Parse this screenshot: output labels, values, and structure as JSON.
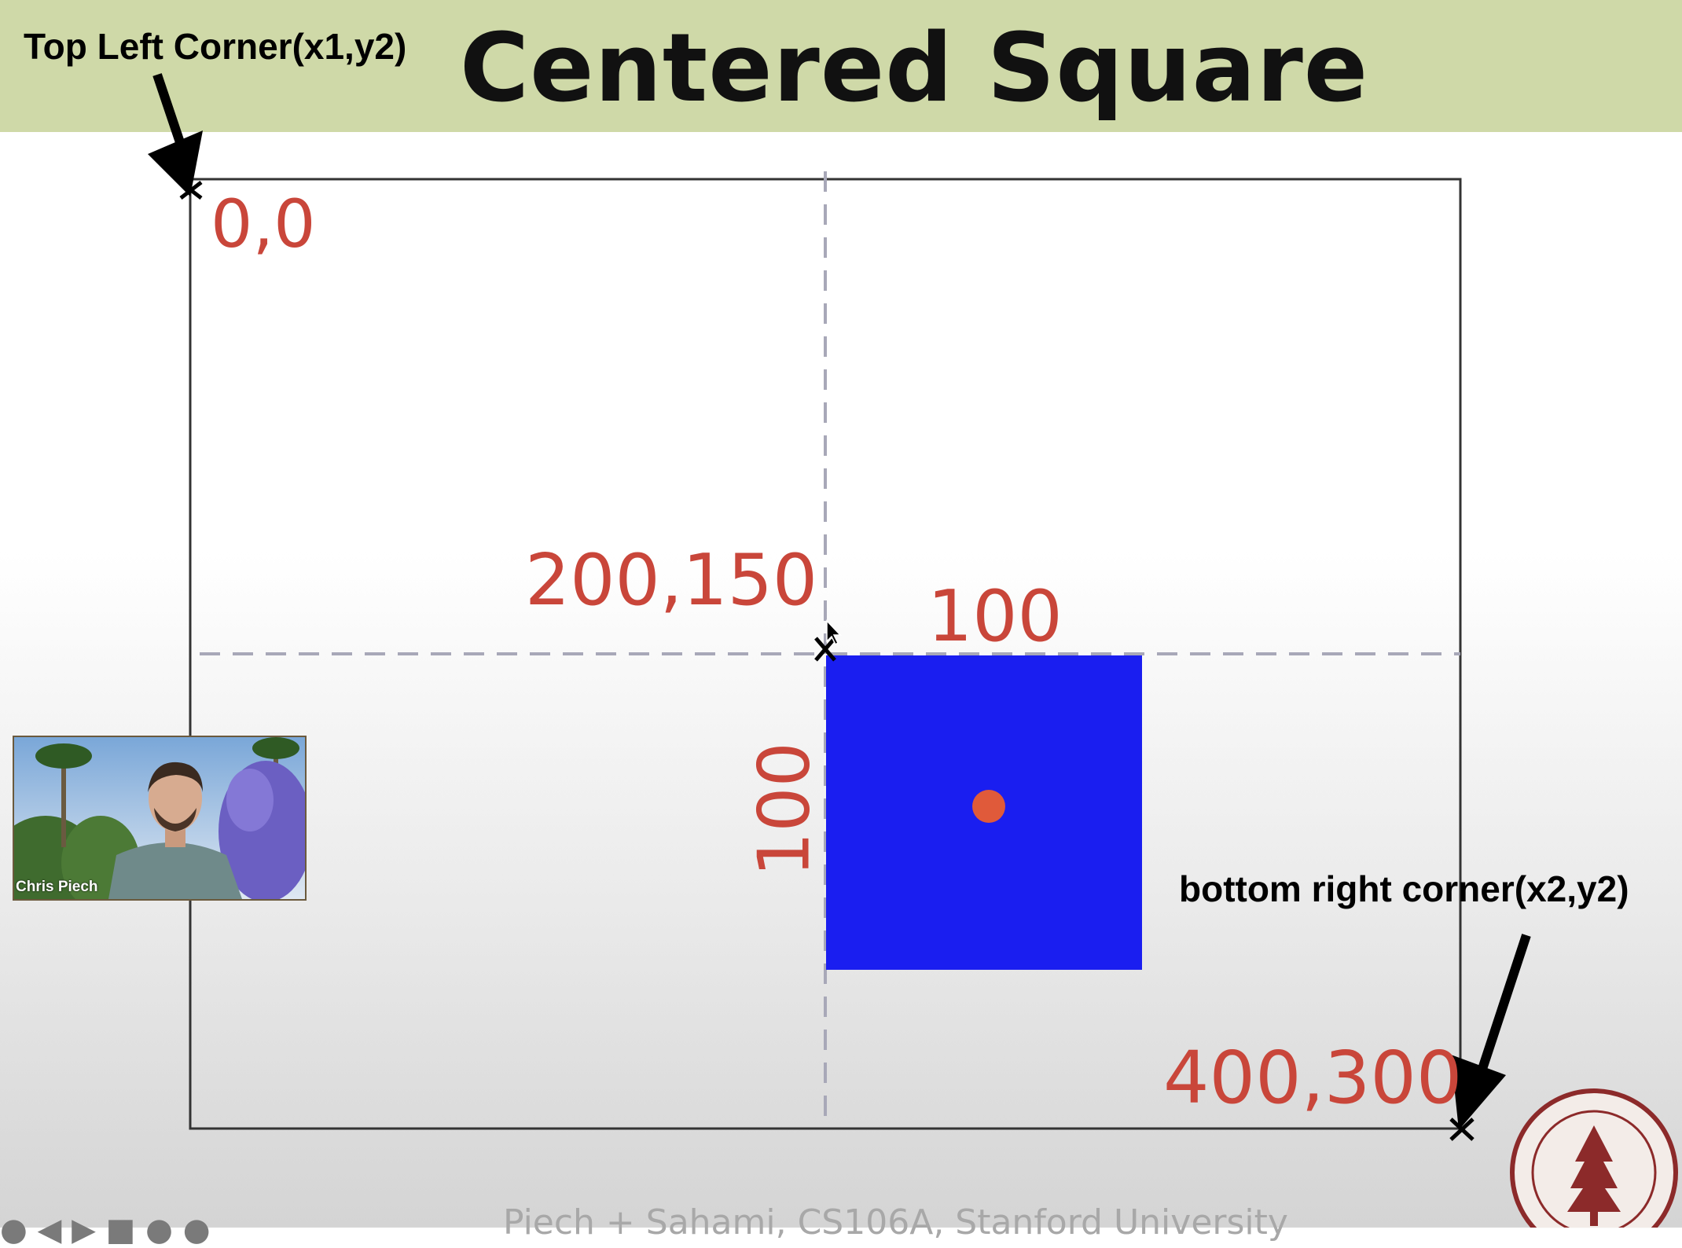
{
  "slide": {
    "title": "Centered Square",
    "footer": "Piech + Sahami, CS106A, Stanford University"
  },
  "annotations": {
    "top_left": "Top Left Corner(x1,y2)",
    "bottom_right": "bottom right corner(x2,y2)"
  },
  "labels": {
    "origin": "0,0",
    "center": "200,150",
    "width": "100",
    "height": "100",
    "bottom_right": "400,300"
  },
  "webcam": {
    "name": "Chris Piech"
  },
  "colors": {
    "header_band": "#cfd9a8",
    "square_fill": "#1a1ef0",
    "coordinate_text": "#c9463a",
    "dashed_guides": "#a8a8b8"
  },
  "icons": [
    "down-arrow-icon",
    "stanford-seal-logo",
    "player-controls-icons"
  ]
}
